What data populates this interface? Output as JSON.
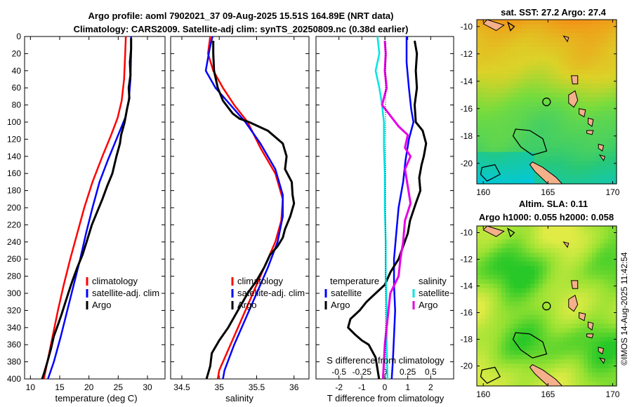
{
  "header": {
    "title_line1": "Argo profile: aoml 7902021_37 09-Aug-2025 15.51S 164.89E (NRT data)",
    "title_line2": "Climatology: CARS2009. Satellite-adj clim: synTS_20250809.nc (0.38d earlier)"
  },
  "watermark": "©IMOS 14-Aug-2025 11:42:54",
  "colors": {
    "climatology": "#ff0000",
    "satellite": "#0000ff",
    "argo": "#000000",
    "sal_satellite": "#00e5e5",
    "sal_argo": "#e600e6"
  },
  "chart_data": [
    {
      "id": "temp",
      "type": "line",
      "xlabel": "temperature (deg C)",
      "ylabel": "",
      "xlim": [
        9,
        33
      ],
      "ylim": [
        400,
        0
      ],
      "xticks": [
        10,
        15,
        20,
        25,
        30
      ],
      "yticks": [
        0,
        20,
        40,
        60,
        80,
        100,
        120,
        140,
        160,
        180,
        200,
        220,
        240,
        260,
        280,
        300,
        320,
        340,
        360,
        380,
        400
      ],
      "legend": [
        "climatology",
        "satellite-adj. clim",
        "Argo"
      ],
      "series": [
        {
          "name": "climatology",
          "color": "#ff0000",
          "points": [
            [
              26.3,
              0
            ],
            [
              26.2,
              20
            ],
            [
              26.0,
              50
            ],
            [
              25.6,
              75
            ],
            [
              24.9,
              95
            ],
            [
              23.8,
              115
            ],
            [
              22.3,
              140
            ],
            [
              20.6,
              170
            ],
            [
              19.2,
              200
            ],
            [
              18.0,
              230
            ],
            [
              16.8,
              260
            ],
            [
              15.7,
              290
            ],
            [
              14.7,
              320
            ],
            [
              13.8,
              350
            ],
            [
              12.9,
              380
            ],
            [
              12.3,
              400
            ]
          ]
        },
        {
          "name": "satellite-adj. clim",
          "color": "#0000ff",
          "points": [
            [
              27.2,
              0
            ],
            [
              27.2,
              20
            ],
            [
              27.1,
              50
            ],
            [
              26.8,
              75
            ],
            [
              26.2,
              95
            ],
            [
              25.0,
              115
            ],
            [
              23.2,
              145
            ],
            [
              21.8,
              170
            ],
            [
              20.6,
              200
            ],
            [
              19.5,
              230
            ],
            [
              18.5,
              260
            ],
            [
              17.4,
              290
            ],
            [
              16.3,
              320
            ],
            [
              15.2,
              350
            ],
            [
              14.0,
              380
            ],
            [
              13.0,
              400
            ]
          ]
        },
        {
          "name": "Argo",
          "color": "#000000",
          "points": [
            [
              27.2,
              2
            ],
            [
              27.2,
              15
            ],
            [
              27.0,
              30
            ],
            [
              27.1,
              45
            ],
            [
              26.8,
              60
            ],
            [
              26.9,
              72
            ],
            [
              26.5,
              85
            ],
            [
              26.1,
              100
            ],
            [
              25.5,
              115
            ],
            [
              25.3,
              125
            ],
            [
              24.7,
              140
            ],
            [
              24.0,
              160
            ],
            [
              23.1,
              175
            ],
            [
              22.3,
              190
            ],
            [
              21.4,
              205
            ],
            [
              20.5,
              220
            ],
            [
              19.6,
              240
            ],
            [
              18.9,
              255
            ],
            [
              18.0,
              270
            ],
            [
              17.2,
              285
            ],
            [
              16.7,
              295
            ],
            [
              16.0,
              310
            ],
            [
              15.3,
              325
            ],
            [
              14.8,
              335
            ],
            [
              14.0,
              350
            ],
            [
              13.5,
              365
            ],
            [
              12.9,
              380
            ],
            [
              12.4,
              392
            ],
            [
              12.0,
              400
            ]
          ]
        }
      ]
    },
    {
      "id": "sal",
      "type": "line",
      "xlabel": "salinity",
      "ylabel": "",
      "xlim": [
        34.35,
        36.2
      ],
      "ylim": [
        400,
        0
      ],
      "xticks": [
        34.5,
        35,
        35.5,
        36
      ],
      "xticklabels": [
        "34.5",
        "35",
        "35.5",
        "36"
      ],
      "legend": [
        "climatology",
        "satellite-adj. clim",
        "Argo"
      ],
      "series": [
        {
          "name": "climatology",
          "color": "#ff0000",
          "points": [
            [
              34.88,
              0
            ],
            [
              34.85,
              20
            ],
            [
              34.92,
              40
            ],
            [
              35.05,
              60
            ],
            [
              35.2,
              80
            ],
            [
              35.38,
              100
            ],
            [
              35.55,
              130
            ],
            [
              35.75,
              160
            ],
            [
              35.85,
              190
            ],
            [
              35.83,
              215
            ],
            [
              35.75,
              240
            ],
            [
              35.6,
              270
            ],
            [
              35.45,
              300
            ],
            [
              35.3,
              330
            ],
            [
              35.15,
              360
            ],
            [
              35.0,
              390
            ],
            [
              34.98,
              400
            ]
          ]
        },
        {
          "name": "satellite-adj. clim",
          "color": "#0000ff",
          "points": [
            [
              34.91,
              0
            ],
            [
              34.87,
              15
            ],
            [
              34.82,
              40
            ],
            [
              34.95,
              60
            ],
            [
              35.15,
              80
            ],
            [
              35.35,
              100
            ],
            [
              35.55,
              125
            ],
            [
              35.75,
              155
            ],
            [
              35.85,
              185
            ],
            [
              35.85,
              210
            ],
            [
              35.78,
              240
            ],
            [
              35.65,
              270
            ],
            [
              35.5,
              300
            ],
            [
              35.35,
              330
            ],
            [
              35.2,
              360
            ],
            [
              35.07,
              390
            ],
            [
              35.05,
              400
            ]
          ]
        },
        {
          "name": "Argo",
          "color": "#000000",
          "points": [
            [
              34.92,
              5
            ],
            [
              34.92,
              20
            ],
            [
              34.93,
              40
            ],
            [
              34.98,
              60
            ],
            [
              35.05,
              75
            ],
            [
              35.18,
              90
            ],
            [
              35.27,
              96
            ],
            [
              35.4,
              100
            ],
            [
              35.65,
              110
            ],
            [
              35.85,
              125
            ],
            [
              35.9,
              140
            ],
            [
              35.88,
              155
            ],
            [
              35.97,
              170
            ],
            [
              35.98,
              185
            ],
            [
              36.0,
              195
            ],
            [
              35.95,
              210
            ],
            [
              35.88,
              225
            ],
            [
              35.85,
              235
            ],
            [
              35.78,
              245
            ],
            [
              35.68,
              255
            ],
            [
              35.6,
              270
            ],
            [
              35.5,
              285
            ],
            [
              35.38,
              300
            ],
            [
              35.25,
              320
            ],
            [
              35.12,
              340
            ],
            [
              35.0,
              355
            ],
            [
              34.9,
              370
            ],
            [
              34.88,
              385
            ],
            [
              34.83,
              400
            ]
          ]
        }
      ]
    },
    {
      "id": "diff",
      "type": "line",
      "xlabel": "T difference from climatology",
      "xlabel_top": "S difference from climatology",
      "xlim": [
        -3,
        3
      ],
      "ylim": [
        400,
        0
      ],
      "xticks": [
        -2,
        -1,
        0,
        1,
        2
      ],
      "sxticks": [
        -0.5,
        -0.25,
        0,
        0.25,
        0.5
      ],
      "sxticklabels": [
        "-0.5",
        "-0.25",
        "0",
        "0.25",
        "0.5"
      ],
      "legend_left_title": "temperature",
      "legend_right_title": "salinity",
      "legend": [
        "satellite",
        "Argo",
        "satellite",
        "Argo"
      ],
      "series": [
        {
          "name": "T satellite",
          "color": "#0000ff",
          "points": [
            [
              0.95,
              0
            ],
            [
              0.95,
              30
            ],
            [
              1.05,
              60
            ],
            [
              1.15,
              85
            ],
            [
              1.25,
              100
            ],
            [
              1.05,
              120
            ],
            [
              0.9,
              145
            ],
            [
              0.8,
              170
            ],
            [
              0.6,
              200
            ],
            [
              0.5,
              230
            ],
            [
              0.4,
              260
            ],
            [
              0.4,
              290
            ],
            [
              0.45,
              320
            ],
            [
              0.4,
              350
            ],
            [
              0.35,
              380
            ],
            [
              0.3,
              400
            ]
          ]
        },
        {
          "name": "T Argo",
          "color": "#000000",
          "points": [
            [
              1.3,
              5
            ],
            [
              1.4,
              20
            ],
            [
              1.35,
              40
            ],
            [
              1.4,
              60
            ],
            [
              1.3,
              80
            ],
            [
              1.35,
              100
            ],
            [
              1.65,
              110
            ],
            [
              1.8,
              125
            ],
            [
              1.7,
              140
            ],
            [
              1.6,
              150
            ],
            [
              1.5,
              165
            ],
            [
              1.55,
              180
            ],
            [
              1.35,
              195
            ],
            [
              1.1,
              215
            ],
            [
              1.0,
              230
            ],
            [
              0.8,
              245
            ],
            [
              0.6,
              260
            ],
            [
              0.25,
              275
            ],
            [
              0.0,
              290
            ],
            [
              -0.4,
              300
            ],
            [
              -0.8,
              310
            ],
            [
              -1.1,
              320
            ],
            [
              -1.5,
              330
            ],
            [
              -1.6,
              340
            ],
            [
              -1.3,
              348
            ],
            [
              -1.0,
              355
            ],
            [
              -0.7,
              360
            ],
            [
              -0.4,
              375
            ],
            [
              -0.25,
              400
            ]
          ]
        },
        {
          "name": "S satellite",
          "color": "#00e5e5",
          "points": [
            [
              -0.08,
              0
            ],
            [
              -0.06,
              20
            ],
            [
              -0.1,
              40
            ],
            [
              -0.06,
              60
            ],
            [
              -0.03,
              80
            ],
            [
              -0.01,
              100
            ],
            [
              -0.01,
              130
            ],
            [
              0.0,
              160
            ],
            [
              0.0,
              200
            ],
            [
              0.01,
              240
            ],
            [
              0.01,
              280
            ],
            [
              0.02,
              320
            ],
            [
              0.02,
              360
            ],
            [
              0.03,
              400
            ]
          ]
        },
        {
          "name": "S Argo",
          "color": "#e600e6",
          "points": [
            [
              0.0,
              5
            ],
            [
              0.01,
              20
            ],
            [
              0.0,
              40
            ],
            [
              0.02,
              60
            ],
            [
              -0.03,
              80
            ],
            [
              0.15,
              105
            ],
            [
              0.25,
              115
            ],
            [
              0.22,
              130
            ],
            [
              0.28,
              140
            ],
            [
              0.22,
              155
            ],
            [
              0.25,
              175
            ],
            [
              0.28,
              195
            ],
            [
              0.22,
              215
            ],
            [
              0.2,
              240
            ],
            [
              0.17,
              260
            ],
            [
              0.15,
              280
            ],
            [
              0.06,
              300
            ],
            [
              0.03,
              330
            ],
            [
              0.0,
              360
            ],
            [
              -0.02,
              400
            ]
          ]
        }
      ]
    },
    {
      "id": "sst_map",
      "type": "heatmap",
      "title": "sat. SST: 27.2 Argo: 27.4",
      "xlim": [
        159.5,
        170.3
      ],
      "ylim": [
        -21.5,
        -9.5
      ],
      "xticks": [
        160,
        165,
        170
      ],
      "yticks": [
        -10,
        -12,
        -14,
        -16,
        -18,
        -20
      ],
      "marker": {
        "lon": 164.89,
        "lat": -15.51
      }
    },
    {
      "id": "sla_map",
      "type": "heatmap",
      "title": "Altim. SLA: 0.11",
      "subtitle": "Argo h1000: 0.055 h2000: 0.058",
      "xlim": [
        159.5,
        170.3
      ],
      "ylim": [
        -21.5,
        -9.5
      ],
      "xticks": [
        160,
        165,
        170
      ],
      "yticks": [
        -10,
        -12,
        -14,
        -16,
        -18,
        -20
      ],
      "marker": {
        "lon": 164.89,
        "lat": -15.51
      }
    }
  ]
}
